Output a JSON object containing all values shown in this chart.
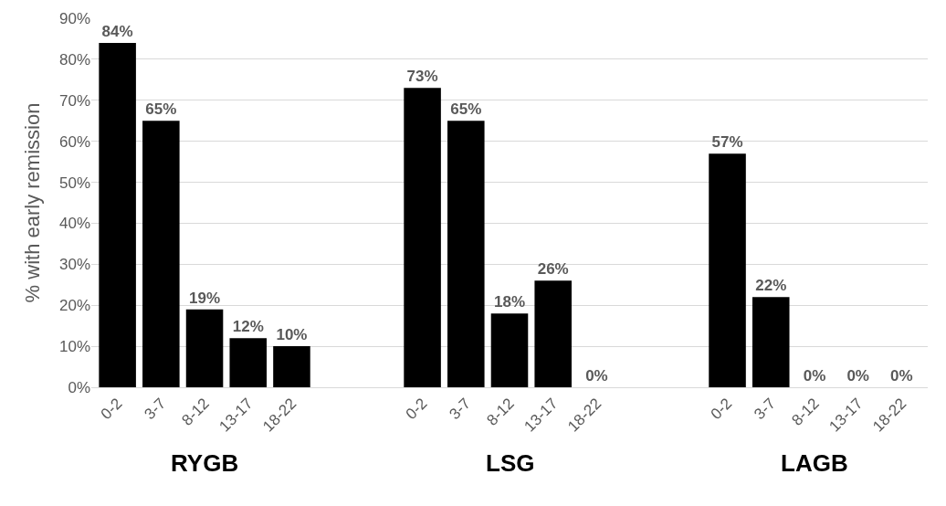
{
  "chart_data": {
    "type": "bar",
    "ylabel": "% with early remission",
    "categories": [
      "0-2",
      "3-7",
      "8-12",
      "13-17",
      "18-22",
      null,
      null,
      "0-2",
      "3-7",
      "8-12",
      "13-17",
      "18-22",
      null,
      null,
      "0-2",
      "3-7",
      "8-12",
      "13-17",
      "18-22"
    ],
    "values": [
      84,
      65,
      19,
      12,
      10,
      null,
      null,
      73,
      65,
      18,
      26,
      0,
      null,
      null,
      57,
      22,
      0,
      0,
      0
    ],
    "value_labels": [
      "84%",
      "65%",
      "19%",
      "12%",
      "10%",
      null,
      null,
      "73%",
      "65%",
      "18%",
      "26%",
      "0%",
      null,
      null,
      "57%",
      "22%",
      "0%",
      "0%",
      "0%"
    ],
    "color": "#000000",
    "ylim": [
      0,
      90
    ],
    "yticks": [
      {
        "value": 0,
        "label": "0%"
      },
      {
        "value": 10,
        "label": "10%"
      },
      {
        "value": 20,
        "label": "20%"
      },
      {
        "value": 30,
        "label": "30%"
      },
      {
        "value": 40,
        "label": "40%"
      },
      {
        "value": 50,
        "label": "50%"
      },
      {
        "value": 60,
        "label": "60%"
      },
      {
        "value": 70,
        "label": "70%"
      },
      {
        "value": 80,
        "label": "80%"
      },
      {
        "value": 90,
        "label": "90%"
      }
    ],
    "grid": "y",
    "annotations": [
      "RYGB",
      "LSG",
      "LAGB"
    ]
  }
}
